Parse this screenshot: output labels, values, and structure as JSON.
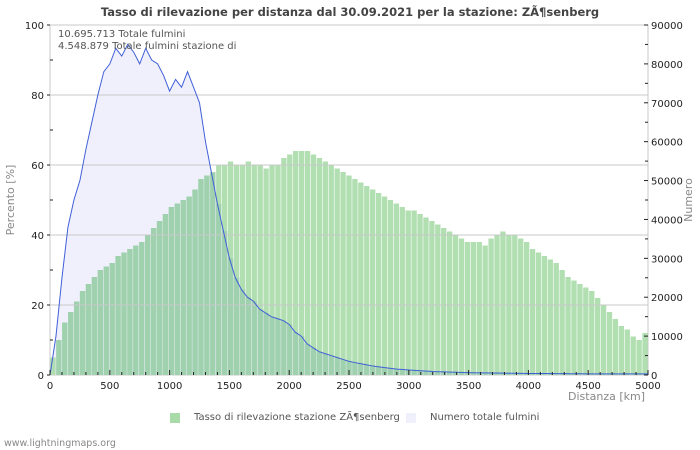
{
  "title": "Tasso di rilevazione per distanza dal 30.09.2021 per la stazione: ZÃ¶senberg",
  "info": {
    "line1": "10.695.713 Totale fulmini",
    "line2": "4.548.879 Totale fulmini stazione di"
  },
  "legend": {
    "detection_label": "Tasso di rilevazione stazione ZÃ¶senberg",
    "total_label": "Numero totale fulmini"
  },
  "footer": "www.lightningmaps.org",
  "colors": {
    "bars": "#a8dba8",
    "bars_under": "#9fcfae",
    "line": "#4060d8",
    "line_fill": "#f0f0fc",
    "grid": "#c8c8c8"
  },
  "chart_data": {
    "type": "bar",
    "title": "Tasso di rilevazione per distanza dal 30.09.2021 per la stazione: ZÃ¶senberg",
    "xlabel": "Distanza   [km]",
    "ylabel": "Percento   [%]",
    "y2label": "Numero",
    "xlim": [
      0,
      5000
    ],
    "ylim": [
      0,
      100
    ],
    "y2lim": [
      0,
      90000
    ],
    "x_ticks": [
      0,
      500,
      1000,
      1500,
      2000,
      2500,
      3000,
      3500,
      4000,
      4500,
      5000
    ],
    "y_ticks": [
      0,
      20,
      40,
      60,
      80,
      100
    ],
    "y2_ticks": [
      0,
      10000,
      20000,
      30000,
      40000,
      50000,
      60000,
      70000,
      80000,
      90000
    ],
    "grid": true,
    "legend_position": "bottom",
    "x": [
      0,
      50,
      100,
      150,
      200,
      250,
      300,
      350,
      400,
      450,
      500,
      550,
      600,
      650,
      700,
      750,
      800,
      850,
      900,
      950,
      1000,
      1050,
      1100,
      1150,
      1200,
      1250,
      1300,
      1350,
      1400,
      1450,
      1500,
      1550,
      1600,
      1650,
      1700,
      1750,
      1800,
      1850,
      1900,
      1950,
      2000,
      2050,
      2100,
      2150,
      2200,
      2250,
      2300,
      2350,
      2400,
      2450,
      2500,
      2550,
      2600,
      2650,
      2700,
      2750,
      2800,
      2850,
      2900,
      2950,
      3000,
      3050,
      3100,
      3150,
      3200,
      3250,
      3300,
      3350,
      3400,
      3450,
      3500,
      3550,
      3600,
      3650,
      3700,
      3750,
      3800,
      3850,
      3900,
      3950,
      4000,
      4050,
      4100,
      4150,
      4200,
      4250,
      4300,
      4350,
      4400,
      4450,
      4500,
      4550,
      4600,
      4650,
      4700,
      4750,
      4800,
      4850,
      4900,
      4950,
      5000
    ],
    "series": [
      {
        "name": "Tasso di rilevazione stazione ZÃ¶senberg",
        "axis": "left",
        "type": "bar",
        "values": [
          5,
          10,
          15,
          18,
          21,
          24,
          26,
          28,
          30,
          31,
          32,
          34,
          35,
          36,
          37,
          38,
          40,
          42,
          44,
          46,
          48,
          49,
          50,
          51,
          53,
          56,
          57,
          58,
          60,
          60,
          61,
          60,
          60,
          61,
          60,
          60,
          59,
          60,
          60,
          62,
          63,
          64,
          64,
          64,
          63,
          62,
          61,
          60,
          59,
          58,
          57,
          56,
          55,
          54,
          53,
          52,
          51,
          50,
          49,
          48,
          47,
          47,
          46,
          45,
          44,
          43,
          42,
          41,
          40,
          39,
          38,
          38,
          38,
          37,
          39,
          40,
          41,
          40,
          40,
          39,
          38,
          36,
          35,
          34,
          33,
          32,
          30,
          28,
          27,
          26,
          25,
          24,
          22,
          20,
          18,
          16,
          14,
          13,
          11,
          10,
          12
        ]
      },
      {
        "name": "Numero totale fulmini",
        "axis": "right",
        "type": "area",
        "values": [
          0,
          10000,
          25000,
          38000,
          45000,
          50000,
          58000,
          65000,
          72000,
          78000,
          80000,
          84000,
          82000,
          85000,
          83000,
          80000,
          84000,
          81000,
          80000,
          77000,
          73000,
          76000,
          74000,
          78000,
          74000,
          70000,
          60000,
          52000,
          44000,
          37000,
          30000,
          25000,
          22000,
          20000,
          19000,
          17000,
          16000,
          15000,
          14500,
          14000,
          13000,
          11000,
          10000,
          8000,
          7000,
          6000,
          5500,
          5000,
          4500,
          4000,
          3500,
          3200,
          2900,
          2600,
          2300,
          2100,
          1900,
          1700,
          1500,
          1400,
          1300,
          1200,
          1100,
          1000,
          900,
          850,
          800,
          750,
          700,
          650,
          600,
          580,
          560,
          540,
          520,
          500,
          480,
          460,
          440,
          420,
          400,
          390,
          380,
          370,
          360,
          350,
          340,
          330,
          320,
          310,
          300,
          300,
          300,
          300,
          300,
          300,
          300,
          300,
          300,
          300,
          300
        ]
      }
    ]
  }
}
